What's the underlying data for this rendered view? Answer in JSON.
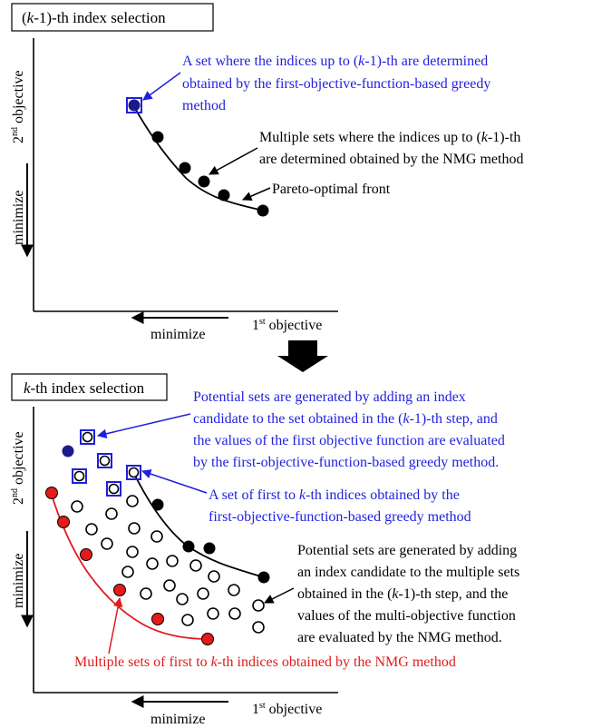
{
  "panel1": {
    "title_parts": [
      "(",
      "k",
      "-1)-th index selection"
    ],
    "ylabel_main": "2",
    "ylabel_sup": "nd",
    "ylabel_rest": " objective",
    "ymin_label": "minimize",
    "xlabel_main": "1",
    "xlabel_sup": "st",
    "xlabel_rest": " objective",
    "xmin_label": "minimize",
    "annotation_blue": [
      [
        "A set where the indices up to (",
        "k",
        "-1)-th are determined"
      ],
      [
        "obtained by the first-objective-function-based greedy"
      ],
      [
        "method"
      ]
    ],
    "annotation_black": [
      [
        "Multiple sets where the indices up to (",
        "k",
        "-1)-th"
      ],
      [
        "are determined obtained by the NMG method"
      ]
    ],
    "annotation_front": "Pareto-optimal front"
  },
  "panel2": {
    "title_parts": [
      "",
      "k",
      "-th index selection"
    ],
    "ylabel_main": "2",
    "ylabel_sup": "nd",
    "ylabel_rest": " objective",
    "ymin_label": "minimize",
    "xlabel_main": "1",
    "xlabel_sup": "st",
    "xlabel_rest": " objective",
    "xmin_label": "minimize",
    "annotation_blue_top": [
      [
        "Potential sets are generated by adding an index"
      ],
      [
        "candidate to the set obtained in the (",
        "k",
        "-1)-th step, and"
      ],
      [
        "the values of the first objective function are evaluated"
      ],
      [
        "by the first-objective-function-based greedy method."
      ]
    ],
    "annotation_blue_mid": [
      [
        "A set of first to ",
        "k",
        "-th indices obtained by the"
      ],
      [
        "first-objective-function-based greedy method"
      ]
    ],
    "annotation_black": [
      [
        "Potential sets are generated by adding"
      ],
      [
        "an index candidate to the multiple sets"
      ],
      [
        "obtained in the (",
        "k",
        "-1)-th step, and the"
      ],
      [
        "values of the multi-objective function"
      ],
      [
        "are evaluated by the NMG method."
      ]
    ],
    "annotation_red": [
      "Multiple sets of first to ",
      "k",
      "-th indices obtained by the NMG method"
    ]
  },
  "colors": {
    "blue": "#1f1fe0",
    "red": "#e21b1b",
    "black": "#000000",
    "navy_fill": "#1a1a8c"
  }
}
